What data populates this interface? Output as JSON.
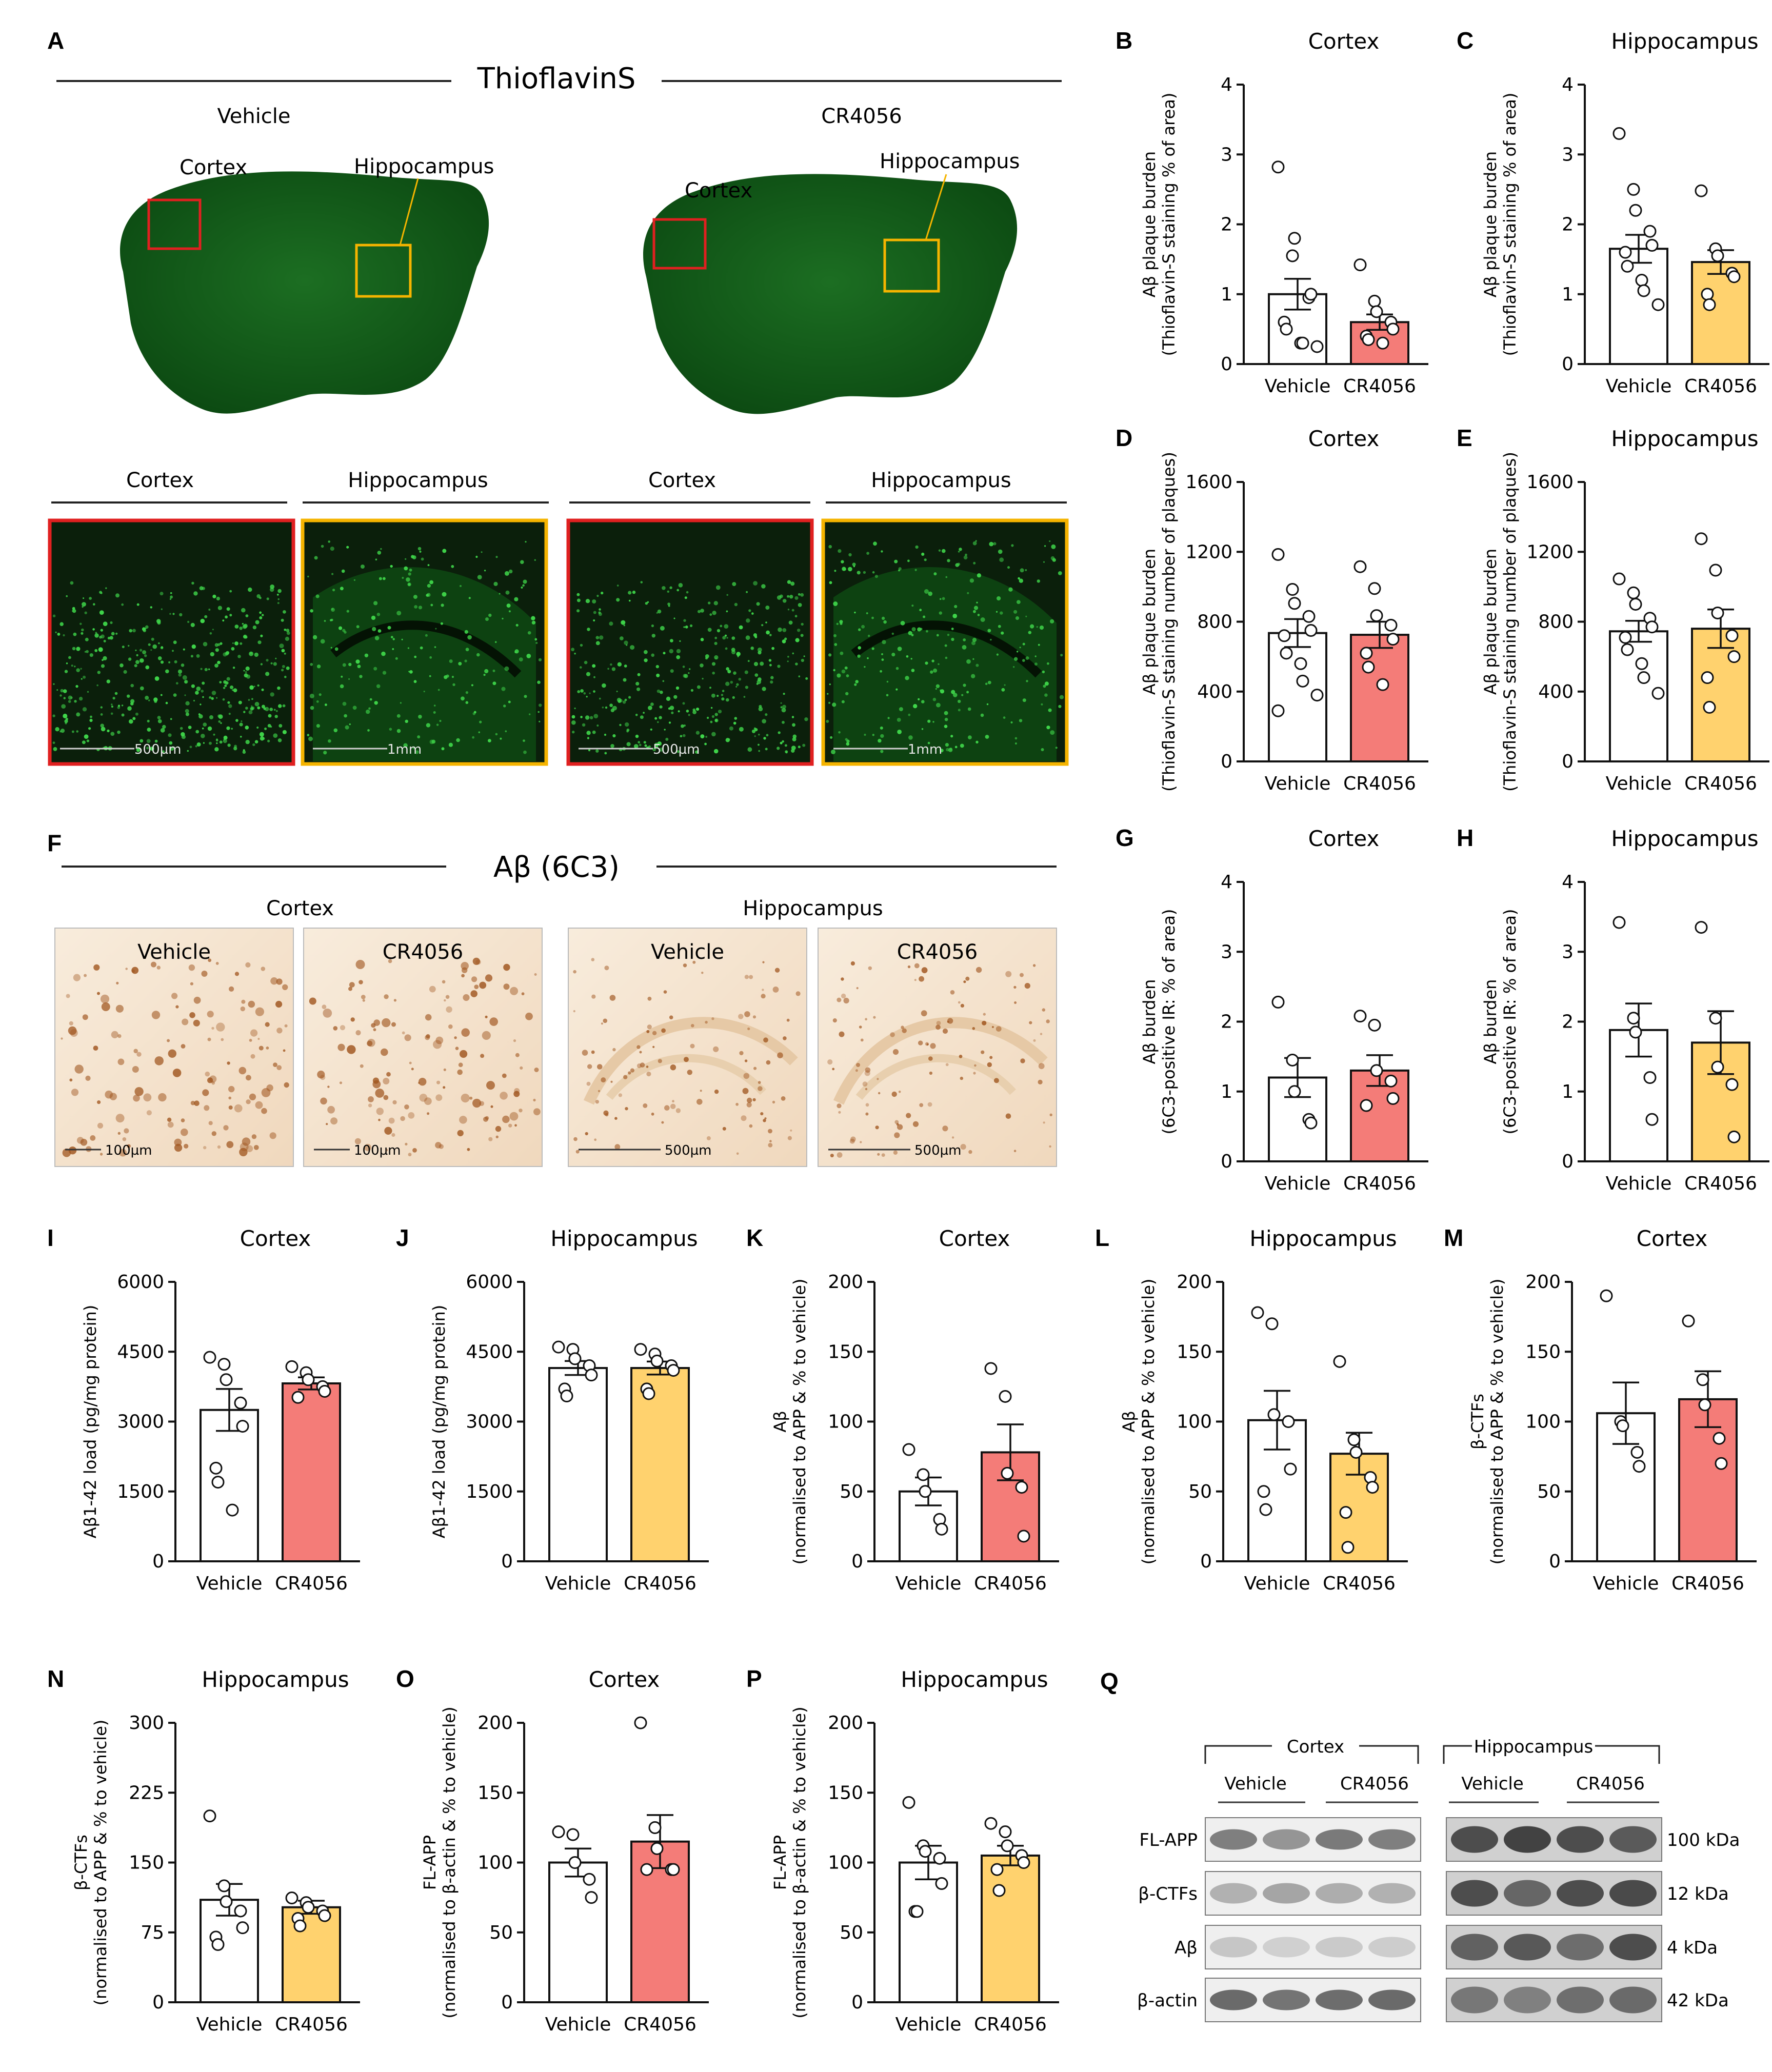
{
  "colors": {
    "cortex_fill": "#f47c78",
    "hippocampus_fill": "#ffd26e",
    "vehicle_fill": "#ffffff",
    "fluor_bg": "#0b1f0b",
    "fluor_tissue": "#0f5a16",
    "dab_bg": "#f6e7d6",
    "red_box": "#e02020",
    "yellow_box": "#f5b400"
  },
  "panel_A": {
    "letter": "A",
    "stain_title": "ThioflavinS",
    "left_condition": "Vehicle",
    "right_condition": "CR4056",
    "cortex_label": "Cortex",
    "hippocampus_label": "Hippocampus",
    "zoom_headers": [
      "Cortex",
      "Hippocampus",
      "Cortex",
      "Hippocampus"
    ],
    "scalebars": [
      "500µm",
      "1mm",
      "500µm",
      "1mm"
    ]
  },
  "panel_F": {
    "letter": "F",
    "stain_title": "Aβ (6C3)",
    "cortex_label": "Cortex",
    "hippocampus_label": "Hippocampus",
    "tiles": [
      {
        "label": "Vehicle",
        "scalebar": "100µm"
      },
      {
        "label": "CR4056",
        "scalebar": "100µm"
      },
      {
        "label": "Vehicle",
        "scalebar": "500µm"
      },
      {
        "label": "CR4056",
        "scalebar": "500µm"
      }
    ]
  },
  "panel_Q": {
    "letter": "Q",
    "cortex_label": "Cortex",
    "hippocampus_label": "Hippocampus",
    "group_labels": [
      "Vehicle",
      "CR4056",
      "Vehicle",
      "CR4056"
    ],
    "rows": [
      {
        "name": "FL-APP",
        "size": "100 kDa"
      },
      {
        "name": "β-CTFs",
        "size": "12 kDa"
      },
      {
        "name": "Aβ",
        "size": "4 kDa"
      },
      {
        "name": "β-actin",
        "size": "42 kDa"
      }
    ]
  },
  "chart_data": [
    {
      "letter": "B",
      "type": "bar",
      "title": "Cortex",
      "ylabel": [
        "Aβ plaque burden",
        "(Thioflavin-S staining % of area)"
      ],
      "categories": [
        "Vehicle",
        "CR4056"
      ],
      "ylim": [
        0,
        4
      ],
      "yticks": [
        0,
        1,
        2,
        3,
        4
      ],
      "region": "cortex",
      "values": [
        1.0,
        0.6
      ],
      "sem": [
        0.22,
        0.11
      ],
      "points": [
        [
          2.82,
          1.55,
          1.8,
          0.95,
          1.0,
          0.6,
          0.5,
          0.3,
          0.3,
          0.25
        ],
        [
          1.42,
          0.9,
          0.75,
          0.6,
          0.5,
          0.4,
          0.35,
          0.3
        ]
      ]
    },
    {
      "letter": "C",
      "type": "bar",
      "title": "Hippocampus",
      "ylabel": [
        "Aβ plaque burden",
        "(Thioflavin-S staining % of area)"
      ],
      "categories": [
        "Vehicle",
        "CR4056"
      ],
      "ylim": [
        0,
        4
      ],
      "yticks": [
        0,
        1,
        2,
        3,
        4
      ],
      "region": "hippocampus",
      "values": [
        1.65,
        1.46
      ],
      "sem": [
        0.2,
        0.17
      ],
      "points": [
        [
          3.3,
          2.5,
          2.2,
          1.9,
          1.7,
          1.6,
          1.4,
          1.2,
          1.05,
          0.85
        ],
        [
          2.48,
          1.65,
          1.55,
          1.3,
          1.25,
          1.0,
          0.85
        ]
      ]
    },
    {
      "letter": "D",
      "type": "bar",
      "title": "Cortex",
      "ylabel": [
        "Aβ plaque burden",
        "(Thioflavin-S staining number of plaques)"
      ],
      "categories": [
        "Vehicle",
        "CR4056"
      ],
      "ylim": [
        0,
        1600
      ],
      "yticks": [
        0,
        400,
        800,
        1200,
        1600
      ],
      "region": "cortex",
      "values": [
        735,
        725
      ],
      "sem": [
        80,
        75
      ],
      "points": [
        [
          1185,
          985,
          905,
          830,
          750,
          720,
          620,
          560,
          460,
          380,
          290
        ],
        [
          1115,
          990,
          835,
          780,
          700,
          620,
          540,
          440
        ]
      ]
    },
    {
      "letter": "E",
      "type": "bar",
      "title": "Hippocampus",
      "ylabel": [
        "Aβ plaque burden",
        "(Thioflavin-S staining number of plaques)"
      ],
      "categories": [
        "Vehicle",
        "CR4056"
      ],
      "ylim": [
        0,
        1600
      ],
      "yticks": [
        0,
        400,
        800,
        1200,
        1600
      ],
      "region": "hippocampus",
      "values": [
        745,
        760
      ],
      "sem": [
        60,
        110
      ],
      "points": [
        [
          1045,
          965,
          900,
          820,
          770,
          710,
          640,
          560,
          480,
          390
        ],
        [
          1275,
          1095,
          850,
          720,
          600,
          480,
          310
        ]
      ]
    },
    {
      "letter": "G",
      "type": "bar",
      "title": "Cortex",
      "ylabel": [
        "Aβ burden",
        "(6C3-positive IR: % of area)"
      ],
      "categories": [
        "Vehicle",
        "CR4056"
      ],
      "ylim": [
        0,
        4
      ],
      "yticks": [
        0,
        1,
        2,
        3,
        4
      ],
      "region": "cortex",
      "values": [
        1.2,
        1.3
      ],
      "sem": [
        0.28,
        0.22
      ],
      "points": [
        [
          2.28,
          1.45,
          1.0,
          0.6,
          0.55
        ],
        [
          2.08,
          1.95,
          1.3,
          1.15,
          0.9,
          0.8
        ]
      ]
    },
    {
      "letter": "H",
      "type": "bar",
      "title": "Hippocampus",
      "ylabel": [
        "Aβ burden",
        "(6C3-positive IR: % of area)"
      ],
      "categories": [
        "Vehicle",
        "CR4056"
      ],
      "ylim": [
        0,
        4
      ],
      "yticks": [
        0,
        1,
        2,
        3,
        4
      ],
      "region": "hippocampus",
      "values": [
        1.88,
        1.7
      ],
      "sem": [
        0.38,
        0.45
      ],
      "points": [
        [
          3.42,
          2.05,
          1.85,
          1.2,
          0.6
        ],
        [
          3.35,
          2.05,
          1.35,
          1.1,
          0.35
        ]
      ]
    },
    {
      "letter": "I",
      "type": "bar",
      "title": "Cortex",
      "ylabel": [
        "Aβ1-42 load (pg/mg protein)"
      ],
      "categories": [
        "Vehicle",
        "CR4056"
      ],
      "ylim": [
        0,
        6000
      ],
      "yticks": [
        0,
        1500,
        3000,
        4500,
        6000
      ],
      "region": "cortex",
      "values": [
        3250,
        3820
      ],
      "sem": [
        450,
        130
      ],
      "points": [
        [
          4380,
          4230,
          3900,
          3400,
          2900,
          2000,
          1700,
          1100
        ],
        [
          4180,
          4050,
          3900,
          3750,
          3650,
          3520
        ]
      ]
    },
    {
      "letter": "J",
      "type": "bar",
      "title": "Hippocampus",
      "ylabel": [
        "Aβ1-42 load (pg/mg protein)"
      ],
      "categories": [
        "Vehicle",
        "CR4056"
      ],
      "ylim": [
        0,
        6000
      ],
      "yticks": [
        0,
        1500,
        3000,
        4500,
        6000
      ],
      "region": "hippocampus",
      "values": [
        4150,
        4150
      ],
      "sem": [
        150,
        140
      ],
      "points": [
        [
          4600,
          4550,
          4350,
          4200,
          4000,
          3700,
          3550
        ],
        [
          4550,
          4450,
          4300,
          4200,
          4100,
          3700,
          3600
        ]
      ]
    },
    {
      "letter": "K",
      "type": "bar",
      "title": "Cortex",
      "ylabel": [
        "Aβ",
        "(normalised to APP & % to vehicle)"
      ],
      "categories": [
        "Vehicle",
        "CR4056"
      ],
      "ylim": [
        0,
        200
      ],
      "yticks": [
        0,
        50,
        100,
        150,
        200
      ],
      "region": "cortex",
      "values": [
        50,
        78
      ],
      "sem": [
        10,
        20
      ],
      "points": [
        [
          80,
          62,
          50,
          30,
          23
        ],
        [
          138,
          118,
          63,
          53,
          18
        ]
      ]
    },
    {
      "letter": "L",
      "type": "bar",
      "title": "Hippocampus",
      "ylabel": [
        "Aβ",
        "(normalised to APP & % to vehicle)"
      ],
      "categories": [
        "Vehicle",
        "CR4056"
      ],
      "ylim": [
        0,
        200
      ],
      "yticks": [
        0,
        50,
        100,
        150,
        200
      ],
      "region": "hippocampus",
      "values": [
        101,
        77
      ],
      "sem": [
        21,
        15
      ],
      "points": [
        [
          178,
          170,
          105,
          100,
          66,
          50,
          37
        ],
        [
          143,
          87,
          78,
          60,
          53,
          35,
          10
        ]
      ]
    },
    {
      "letter": "M",
      "type": "bar",
      "title": "Cortex",
      "ylabel": [
        "β-CTFs",
        "(normalised to APP & % to vehicle)"
      ],
      "categories": [
        "Vehicle",
        "CR4056"
      ],
      "ylim": [
        0,
        200
      ],
      "yticks": [
        0,
        50,
        100,
        150,
        200
      ],
      "region": "cortex",
      "values": [
        106,
        116
      ],
      "sem": [
        22,
        20
      ],
      "points": [
        [
          190,
          100,
          97,
          78,
          68
        ],
        [
          172,
          130,
          112,
          88,
          70
        ]
      ]
    },
    {
      "letter": "N",
      "type": "bar",
      "title": "Hippocampus",
      "ylabel": [
        "β-CTFs",
        "(normalised to APP & % to vehicle)"
      ],
      "categories": [
        "Vehicle",
        "CR4056"
      ],
      "ylim": [
        0,
        300
      ],
      "yticks": [
        0,
        75,
        150,
        225,
        300
      ],
      "region": "hippocampus",
      "values": [
        110,
        102
      ],
      "sem": [
        17,
        7
      ],
      "points": [
        [
          200,
          125,
          108,
          98,
          80,
          70,
          62
        ],
        [
          112,
          107,
          102,
          98,
          93,
          90,
          82
        ]
      ]
    },
    {
      "letter": "O",
      "type": "bar",
      "title": "Cortex",
      "ylabel": [
        "FL-APP",
        "(normalised to β-actin & % to vehicle)"
      ],
      "categories": [
        "Vehicle",
        "CR4056"
      ],
      "ylim": [
        0,
        200
      ],
      "yticks": [
        0,
        50,
        100,
        150,
        200
      ],
      "region": "cortex",
      "values": [
        100,
        115
      ],
      "sem": [
        10,
        19
      ],
      "points": [
        [
          122,
          120,
          100,
          88,
          75
        ],
        [
          200,
          125,
          110,
          95,
          95,
          95
        ]
      ]
    },
    {
      "letter": "P",
      "type": "bar",
      "title": "Hippocampus",
      "ylabel": [
        "FL-APP",
        "(normalised to β-actin & % to vehicle)"
      ],
      "categories": [
        "Vehicle",
        "CR4056"
      ],
      "ylim": [
        0,
        200
      ],
      "yticks": [
        0,
        50,
        100,
        150,
        200
      ],
      "region": "hippocampus",
      "values": [
        100,
        105
      ],
      "sem": [
        12,
        7
      ],
      "points": [
        [
          143,
          112,
          108,
          103,
          85,
          65,
          65
        ],
        [
          128,
          122,
          112,
          105,
          100,
          95,
          80
        ]
      ]
    }
  ]
}
